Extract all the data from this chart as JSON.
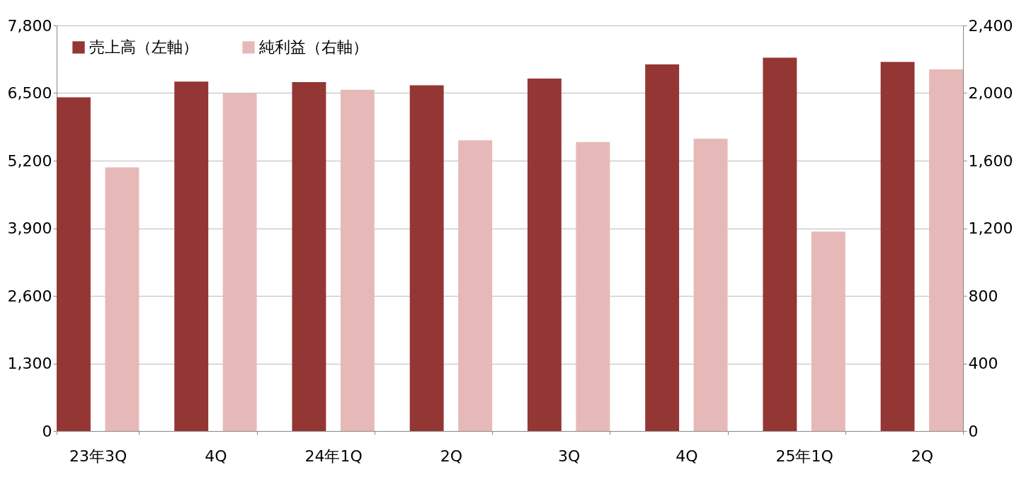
{
  "chart_data": {
    "type": "bar",
    "categories": [
      "23年3Q",
      "4Q",
      "24年1Q",
      "2Q",
      "3Q",
      "4Q",
      "25年1Q",
      "2Q"
    ],
    "series": [
      {
        "name": "売上高（左軸）",
        "color": "#943634",
        "values": [
          6420,
          6720,
          6710,
          6650,
          6780,
          7050,
          7180,
          7100
        ]
      },
      {
        "name": "純利益（右軸）",
        "color": "#e6b9b8",
        "axis": "y2",
        "values": [
          1560,
          2000,
          2020,
          1720,
          1710,
          1730,
          1180,
          2140
        ]
      }
    ],
    "ylim": [
      0,
      7800
    ],
    "yticks": [
      0,
      {
        "value": 1300,
        "label": "1,300"
      },
      {
        "value": 2600,
        "label": "2,600"
      },
      {
        "value": 3900,
        "label": "3,900"
      },
      {
        "value": 5200,
        "label": "5,200"
      },
      {
        "value": 6500,
        "label": "6,500"
      },
      {
        "value": 7800,
        "label": "7,800"
      }
    ],
    "y2lim": [
      0,
      2400
    ],
    "y2ticks": [
      0,
      400,
      800,
      {
        "value": 1200,
        "label": "1,200"
      },
      {
        "value": 1600,
        "label": "1,600"
      },
      {
        "value": 2000,
        "label": "2,000"
      },
      {
        "value": 2400,
        "label": "2,400"
      }
    ],
    "grid": "y",
    "legend": "top left"
  }
}
